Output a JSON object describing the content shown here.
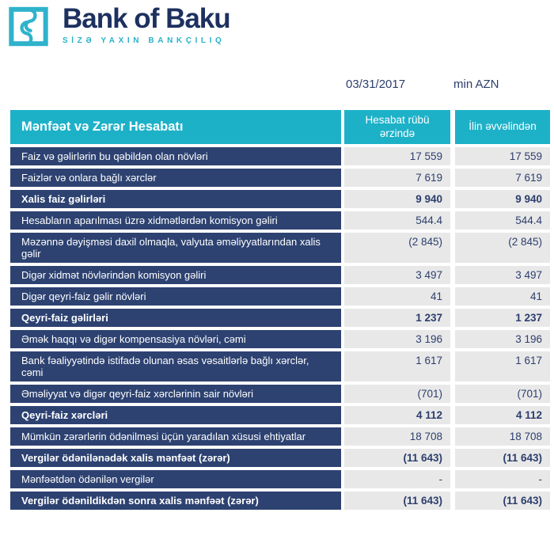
{
  "brand": {
    "name": "Bank of Baku",
    "tagline": "SİZƏ YAXIN BANKÇILIQ",
    "logo_icon": "chain-links-icon"
  },
  "meta": {
    "date": "03/31/2017",
    "unit": "min AZN"
  },
  "table": {
    "title": "Mənfəət və Zərər Hesabatı",
    "col_quarter": "Hesabat rübü ərzində",
    "col_ytd": "İlin əvvəlindən",
    "rows": [
      {
        "label": "Faiz və gəlirlərin bu qəbildən olan növləri",
        "quarter": "17 559",
        "ytd": "17 559",
        "bold": false
      },
      {
        "label": "Faizlər və onlara bağlı xərclər",
        "quarter": "7 619",
        "ytd": "7 619",
        "bold": false
      },
      {
        "label": "Xalis faiz gəlirləri",
        "quarter": "9 940",
        "ytd": "9 940",
        "bold": true
      },
      {
        "label": "Hesabların aparılması üzrə xidmətlərdən komisyon gəliri",
        "quarter": "544.4",
        "ytd": "544.4",
        "bold": false
      },
      {
        "label": "Məzənnə dəyişməsi daxil olmaqla, valyuta əməliyyatlarından xalis gəlir",
        "quarter": "(2 845)",
        "ytd": "(2 845)",
        "bold": false
      },
      {
        "label": "Digər xidmət növlərindən komisyon gəliri",
        "quarter": "3 497",
        "ytd": "3 497",
        "bold": false
      },
      {
        "label": "Digər qeyri-faiz gəlir növləri",
        "quarter": "41",
        "ytd": "41",
        "bold": false
      },
      {
        "label": "Qeyri-faiz gəlirləri",
        "quarter": "1 237",
        "ytd": "1 237",
        "bold": true
      },
      {
        "label": "Əmək haqqı və digər kompensasiya növləri, cəmi",
        "quarter": "3 196",
        "ytd": "3 196",
        "bold": false
      },
      {
        "label": "Bank fəaliyyətində istifadə olunan əsas vəsaitlərlə bağlı xərclər, cəmi",
        "quarter": "1 617",
        "ytd": "1 617",
        "bold": false
      },
      {
        "label": "Əməliyyat və digər qeyri-faiz xərclərinin sair növləri",
        "quarter": "(701)",
        "ytd": "(701)",
        "bold": false
      },
      {
        "label": "Qeyri-faiz xərcləri",
        "quarter": "4 112",
        "ytd": "4 112",
        "bold": true
      },
      {
        "label": "Mümkün zərərlərin ödənilməsi üçün yaradılan xüsusi ehtiyatlar",
        "quarter": "18 708",
        "ytd": "18 708",
        "bold": false
      },
      {
        "label": "Vergilər ödənilənədək xalis mənfəət (zərər)",
        "quarter": "(11 643)",
        "ytd": "(11 643)",
        "bold": true
      },
      {
        "label": "Mənfəətdən ödənilən vergilər",
        "quarter": "-",
        "ytd": "-",
        "bold": false
      },
      {
        "label": "Vergilər ödənildikdən sonra xalis mənfəət (zərər)",
        "quarter": "(11 643)",
        "ytd": "(11 643)",
        "bold": true
      }
    ]
  },
  "colors": {
    "teal": "#1db1c8",
    "logo_teal": "#2fb3cb",
    "brand_navy": "#1d3160",
    "row_navy": "#2d4271",
    "value_bg": "#e8e8e8",
    "value_text": "#2c3e6d"
  }
}
